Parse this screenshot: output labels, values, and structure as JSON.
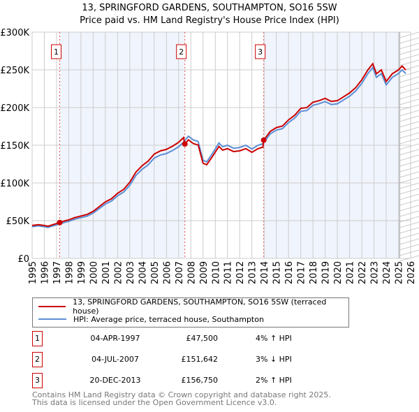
{
  "chart_data": {
    "type": "line",
    "title": "13, SPRINGFORD GARDENS, SOUTHAMPTON, SO16 5SW",
    "subtitle": "Price paid vs. HM Land Registry's House Price Index (HPI)",
    "xlim": [
      1995,
      2026
    ],
    "ylim": [
      0,
      300000
    ],
    "x_ticks": [
      "1995",
      "1996",
      "1997",
      "1998",
      "1999",
      "2000",
      "2001",
      "2002",
      "2003",
      "2004",
      "2005",
      "2006",
      "2007",
      "2008",
      "2009",
      "2010",
      "2011",
      "2012",
      "2013",
      "2014",
      "2015",
      "2016",
      "2017",
      "2018",
      "2019",
      "2020",
      "2021",
      "2022",
      "2023",
      "2024",
      "2025",
      "2026"
    ],
    "y_ticks": [
      {
        "v": 0,
        "label": "£0"
      },
      {
        "v": 50000,
        "label": "£50K"
      },
      {
        "v": 100000,
        "label": "£100K"
      },
      {
        "v": 150000,
        "label": "£150K"
      },
      {
        "v": 200000,
        "label": "£200K"
      },
      {
        "v": 250000,
        "label": "£250K"
      },
      {
        "v": 300000,
        "label": "£300K"
      }
    ],
    "grid": true,
    "hpi_series": {
      "name": "HPI: Average price, terraced house, Southampton",
      "color": "#5b8fd4",
      "x": [
        1995.0,
        1995.5,
        1996.0,
        1996.3,
        1996.7,
        1997.26,
        1997.7,
        1998.0,
        1998.5,
        1999.0,
        1999.5,
        2000.0,
        2000.5,
        2001.0,
        2001.5,
        2002.0,
        2002.5,
        2003.0,
        2003.5,
        2004.0,
        2004.5,
        2005.0,
        2005.5,
        2006.0,
        2006.5,
        2007.0,
        2007.4,
        2007.5,
        2007.8,
        2008.2,
        2008.6,
        2009.0,
        2009.3,
        2009.8,
        2010.3,
        2010.6,
        2011.0,
        2011.5,
        2012.0,
        2012.5,
        2013.0,
        2013.5,
        2013.9,
        2013.97,
        2014.5,
        2015.0,
        2015.5,
        2016.0,
        2016.5,
        2017.0,
        2017.5,
        2018.0,
        2018.5,
        2019.0,
        2019.5,
        2020.0,
        2020.5,
        2021.0,
        2021.5,
        2022.0,
        2022.5,
        2022.9,
        2023.2,
        2023.6,
        2024.0,
        2024.5,
        2025.0,
        2025.3,
        2025.6
      ],
      "y": [
        42000,
        43000,
        42000,
        41000,
        43000,
        45700,
        48000,
        49000,
        52000,
        54000,
        56000,
        60000,
        66000,
        72000,
        76000,
        83000,
        88000,
        97000,
        110000,
        118000,
        124000,
        133000,
        137000,
        139000,
        143000,
        148000,
        154000,
        156300,
        162000,
        157000,
        155000,
        130000,
        128000,
        140000,
        153000,
        148000,
        150000,
        146000,
        147000,
        150000,
        145000,
        150000,
        152000,
        153700,
        165000,
        170000,
        172000,
        180000,
        186000,
        195000,
        196000,
        203000,
        205000,
        208000,
        204000,
        205000,
        210000,
        215000,
        222000,
        232000,
        245000,
        253000,
        240000,
        245000,
        230000,
        240000,
        245000,
        250000,
        245000
      ]
    },
    "property_series": {
      "name": "13, SPRINGFORD GARDENS, SOUTHAMPTON, SO16 5SW (terraced house)",
      "color": "#cc0000",
      "hpi_ratio_segments": [
        {
          "from": 1995,
          "to": 2007.5,
          "ratio": 1.04
        },
        {
          "from": 2007.5,
          "to": 2013.97,
          "ratio": 0.97
        },
        {
          "from": 2013.97,
          "to": 2026,
          "ratio": 1.02
        }
      ]
    },
    "sales": [
      {
        "id": "1",
        "x": 1997.26,
        "y": 47500
      },
      {
        "id": "2",
        "x": 2007.51,
        "y": 151642
      },
      {
        "id": "3",
        "x": 2013.97,
        "y": 156750
      }
    ],
    "forecast_start": 2025.1
  },
  "legend": {
    "property": "13, SPRINGFORD GARDENS, SOUTHAMPTON, SO16 5SW (terraced house)",
    "hpi": "HPI: Average price, terraced house, Southampton"
  },
  "table": [
    {
      "n": "1",
      "date": "04-APR-1997",
      "price": "£47,500",
      "hpi": "4% ↑ HPI"
    },
    {
      "n": "2",
      "date": "04-JUL-2007",
      "price": "£151,642",
      "hpi": "3% ↓ HPI"
    },
    {
      "n": "3",
      "date": "20-DEC-2013",
      "price": "£156,750",
      "hpi": "2% ↑ HPI"
    }
  ],
  "footer": {
    "line1": "Contains HM Land Registry data © Crown copyright and database right 2025.",
    "line2": "This data is licensed under the Open Government Licence v3.0."
  }
}
